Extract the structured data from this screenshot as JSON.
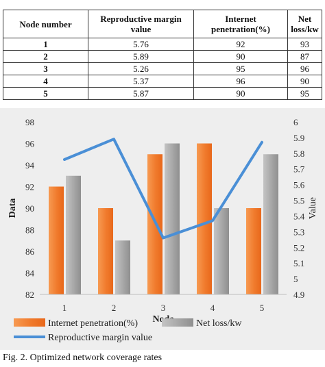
{
  "top_title_fragment": "",
  "table": {
    "headers": [
      "Node number",
      "Reproductive margin value",
      "Internet penetration(%)",
      "Net loss/kw"
    ],
    "rows": [
      {
        "node": "1",
        "margin": "5.76",
        "penetration": "92",
        "loss": "93"
      },
      {
        "node": "2",
        "margin": "5.89",
        "penetration": "90",
        "loss": "87"
      },
      {
        "node": "3",
        "margin": "5.26",
        "penetration": "95",
        "loss": "96"
      },
      {
        "node": "4",
        "margin": "5.37",
        "penetration": "96",
        "loss": "90"
      },
      {
        "node": "5",
        "margin": "5.87",
        "penetration": "90",
        "loss": "95"
      }
    ]
  },
  "chart_data": {
    "type": "bar",
    "categories": [
      "1",
      "2",
      "3",
      "4",
      "5"
    ],
    "series": [
      {
        "name": "Internet penetration(%)",
        "type": "bar",
        "axis": "left",
        "values": [
          92,
          90,
          95,
          96,
          90
        ],
        "color": "#f07a2c"
      },
      {
        "name": "Net loss/kw",
        "type": "bar",
        "axis": "left",
        "values": [
          93,
          87,
          96,
          90,
          95
        ],
        "color": "#a6a6a6"
      },
      {
        "name": "Reproductive margin value",
        "type": "line",
        "axis": "right",
        "values": [
          5.76,
          5.89,
          5.26,
          5.37,
          5.87
        ],
        "color": "#4a8fd6"
      }
    ],
    "xlabel": "Node",
    "ylabel": "Data",
    "y2label": "Value",
    "ylim": [
      82,
      98
    ],
    "yticks": [
      "98",
      "96",
      "94",
      "92",
      "90",
      "88",
      "86",
      "84",
      "82"
    ],
    "y2lim": [
      4.9,
      6
    ],
    "y2ticks": [
      "6",
      "5.9",
      "5.8",
      "5.7",
      "5.6",
      "5.5",
      "5.4",
      "5.3",
      "5.2",
      "5.1",
      "5",
      "4.9"
    ],
    "grid": false,
    "background": "#eeeeee",
    "legend": "bottom"
  },
  "caption": "Fig. 2. Optimized network coverage rates"
}
